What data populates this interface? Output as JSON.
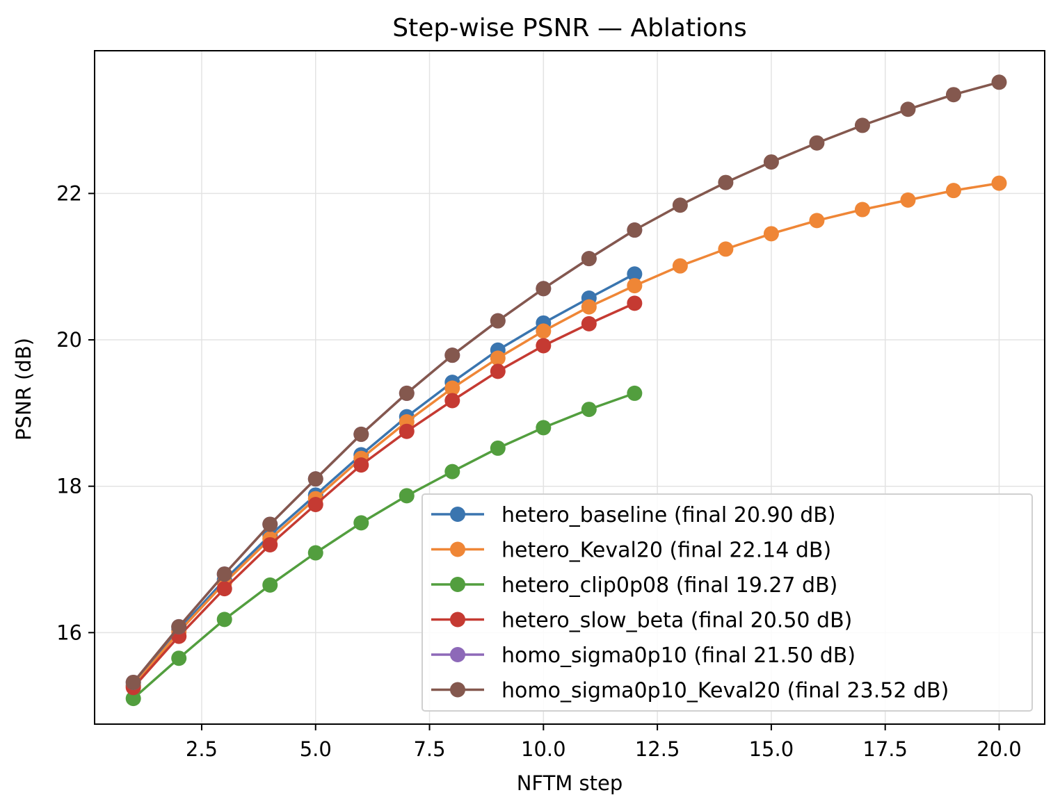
{
  "chart_data": {
    "type": "line",
    "title": "Step-wise PSNR — Ablations",
    "xlabel": "NFTM step",
    "ylabel": "PSNR (dB)",
    "xlim": [
      0.15,
      21.0
    ],
    "ylim": [
      14.75,
      23.95
    ],
    "x_ticks": [
      2.5,
      5.0,
      7.5,
      10.0,
      12.5,
      15.0,
      17.5,
      20.0
    ],
    "x_tick_labels": [
      "2.5",
      "5.0",
      "7.5",
      "10.0",
      "12.5",
      "15.0",
      "17.5",
      "20.0"
    ],
    "y_ticks": [
      16,
      18,
      20,
      22
    ],
    "y_tick_labels": [
      "16",
      "18",
      "20",
      "22"
    ],
    "grid": true,
    "legend_position": "lower-right",
    "series": [
      {
        "name": "hetero_baseline (final 20.90 dB)",
        "color": "#3a75af",
        "x": [
          1,
          2,
          3,
          4,
          5,
          6,
          7,
          8,
          9,
          10,
          11,
          12
        ],
        "y": [
          15.28,
          16.04,
          16.72,
          17.33,
          17.88,
          18.43,
          18.95,
          19.42,
          19.86,
          20.23,
          20.57,
          20.9
        ]
      },
      {
        "name": "hetero_Keval20 (final 22.14 dB)",
        "color": "#ef8636",
        "x": [
          1,
          2,
          3,
          4,
          5,
          6,
          7,
          8,
          9,
          10,
          11,
          12,
          13,
          14,
          15,
          16,
          17,
          18,
          19,
          20
        ],
        "y": [
          15.27,
          16.01,
          16.68,
          17.28,
          17.83,
          18.38,
          18.88,
          19.34,
          19.75,
          20.12,
          20.45,
          20.74,
          21.01,
          21.24,
          21.45,
          21.63,
          21.78,
          21.91,
          22.04,
          22.14
        ]
      },
      {
        "name": "hetero_clip0p08 (final 19.27 dB)",
        "color": "#529e3e",
        "x": [
          1,
          2,
          3,
          4,
          5,
          6,
          7,
          8,
          9,
          10,
          11,
          12
        ],
        "y": [
          15.1,
          15.65,
          16.18,
          16.65,
          17.09,
          17.5,
          17.87,
          18.2,
          18.52,
          18.8,
          19.05,
          19.27
        ]
      },
      {
        "name": "hetero_slow_beta (final 20.50 dB)",
        "color": "#c53a32",
        "x": [
          1,
          2,
          3,
          4,
          5,
          6,
          7,
          8,
          9,
          10,
          11,
          12
        ],
        "y": [
          15.25,
          15.95,
          16.6,
          17.2,
          17.75,
          18.29,
          18.75,
          19.17,
          19.57,
          19.92,
          20.22,
          20.5
        ]
      },
      {
        "name": "homo_sigma0p10 (final 21.50 dB)",
        "color": "#8d69b8",
        "x": [
          1,
          2,
          3,
          4,
          5,
          6,
          7,
          8,
          9,
          10,
          11,
          12
        ],
        "y": [
          15.32,
          16.08,
          16.8,
          17.48,
          18.1,
          18.71,
          19.27,
          19.79,
          20.26,
          20.7,
          21.11,
          21.5
        ]
      },
      {
        "name": "homo_sigma0p10_Keval20 (final 23.52 dB)",
        "color": "#84584e",
        "x": [
          1,
          2,
          3,
          4,
          5,
          6,
          7,
          8,
          9,
          10,
          11,
          12,
          13,
          14,
          15,
          16,
          17,
          18,
          19,
          20
        ],
        "y": [
          15.32,
          16.08,
          16.8,
          17.48,
          18.1,
          18.71,
          19.27,
          19.79,
          20.26,
          20.7,
          21.11,
          21.5,
          21.84,
          22.15,
          22.43,
          22.69,
          22.93,
          23.15,
          23.35,
          23.52
        ]
      }
    ]
  }
}
